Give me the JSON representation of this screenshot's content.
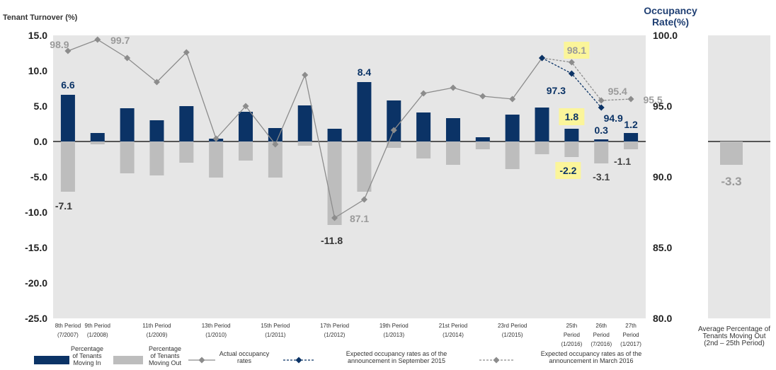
{
  "chart_data": {
    "type": "bar",
    "left_axis_title": "Tenant Turnover (%)",
    "right_axis_title_lines": [
      "Occupancy",
      "Rate(%)"
    ],
    "y_left": {
      "min": -25.0,
      "max": 15.0,
      "ticks": [
        "15.0",
        "10.0",
        "5.0",
        "0.0",
        "-5.0",
        "-10.0",
        "-15.0",
        "-20.0",
        "-25.0"
      ]
    },
    "y_right": {
      "min": 80.0,
      "max": 100.0,
      "ticks": [
        "100.0",
        "95.0",
        "90.0",
        "85.0",
        "80.0"
      ]
    },
    "categories": [
      "8",
      "9",
      "10",
      "11",
      "12",
      "13",
      "14",
      "15",
      "16",
      "17",
      "18",
      "19",
      "20",
      "21",
      "22",
      "23",
      "24",
      "25",
      "26",
      "27"
    ],
    "x_labels": [
      {
        "i": 0,
        "lines": [
          "8th Period",
          "(7/2007)"
        ]
      },
      {
        "i": 1,
        "lines": [
          "9th Period",
          "(1/2008)"
        ]
      },
      {
        "i": 3,
        "lines": [
          "11th Period",
          "(1/2009)"
        ]
      },
      {
        "i": 5,
        "lines": [
          "13th Period",
          "(1/2010)"
        ]
      },
      {
        "i": 7,
        "lines": [
          "15th Period",
          "(1/2011)"
        ]
      },
      {
        "i": 9,
        "lines": [
          "17th Period",
          "(1/2012)"
        ]
      },
      {
        "i": 11,
        "lines": [
          "19th Period",
          "(1/2013)"
        ]
      },
      {
        "i": 13,
        "lines": [
          "21st Period",
          "(1/2014)"
        ]
      },
      {
        "i": 15,
        "lines": [
          "23rd  Period",
          "(1/2015)"
        ]
      },
      {
        "i": 17,
        "lines": [
          "25th",
          "Period",
          "(1/2016)"
        ]
      },
      {
        "i": 18,
        "lines": [
          "26th",
          "Period",
          "(7/2016)"
        ]
      },
      {
        "i": 19,
        "lines": [
          "27th",
          "Period",
          "(1/2017)"
        ]
      }
    ],
    "series": [
      {
        "name": "Percentage of Tenants Moving In",
        "color": "#0b3366",
        "values": [
          6.6,
          1.2,
          4.7,
          3.0,
          5.0,
          0.4,
          4.2,
          1.9,
          5.1,
          1.8,
          8.4,
          5.8,
          4.1,
          3.3,
          0.6,
          3.8,
          4.8,
          1.8,
          0.3,
          1.2
        ]
      },
      {
        "name": "Percentage of Tenants Moving Out",
        "color": "#bdbdbd",
        "values": [
          -7.1,
          -0.4,
          -4.5,
          -4.8,
          -3.0,
          -5.1,
          -2.7,
          -5.1,
          -0.6,
          -11.8,
          -7.1,
          -0.9,
          -2.4,
          -3.3,
          -1.1,
          -3.9,
          -1.8,
          -2.2,
          -3.1,
          -1.1
        ]
      },
      {
        "name": "Actual occupancy rates",
        "color": "#8c8c8c",
        "values": [
          98.9,
          99.7,
          98.4,
          96.7,
          98.8,
          92.7,
          95.0,
          92.3,
          97.2,
          87.1,
          88.4,
          93.3,
          95.9,
          96.3,
          95.7,
          95.5,
          98.4,
          null,
          null,
          null
        ]
      },
      {
        "name": "Expected occupancy rates as of the announcement in September 2015",
        "color": "#0b3366",
        "points": [
          [
            16,
            98.4
          ],
          [
            17,
            97.3
          ],
          [
            18,
            94.9
          ]
        ]
      },
      {
        "name": "Expected occupancy rates as of the announcement in March 2016",
        "color": "#8c8c8c",
        "points": [
          [
            16,
            98.4
          ],
          [
            17,
            98.1
          ],
          [
            18,
            95.4
          ],
          [
            19,
            95.5
          ]
        ]
      }
    ],
    "data_labels": [
      {
        "text": "6.6",
        "i": 0,
        "v": 6.6,
        "axis": "left",
        "color": "#0b3366",
        "dx": 0,
        "dy": -14,
        "highlight": false
      },
      {
        "text": "8.4",
        "i": 10,
        "v": 8.4,
        "axis": "left",
        "color": "#0b3366",
        "dx": 0,
        "dy": -14,
        "highlight": false
      },
      {
        "text": "1.8",
        "i": 17,
        "v": 1.8,
        "axis": "left",
        "color": "#0b3366",
        "dx": 0,
        "dy": -17,
        "highlight": true
      },
      {
        "text": "0.3",
        "i": 18,
        "v": 0.3,
        "axis": "left",
        "color": "#0b3366",
        "dx": 0,
        "dy": -13,
        "highlight": false
      },
      {
        "text": "1.2",
        "i": 19,
        "v": 1.2,
        "axis": "left",
        "color": "#0b3366",
        "dx": 0,
        "dy": -12,
        "highlight": false
      },
      {
        "text": "-7.1",
        "i": 0,
        "v": -7.1,
        "axis": "left",
        "color": "#333333",
        "dx": -6,
        "dy": 20,
        "highlight": false
      },
      {
        "text": "-11.8",
        "i": 9,
        "v": -11.8,
        "axis": "left",
        "color": "#333333",
        "dx": -4,
        "dy": 22,
        "highlight": false
      },
      {
        "text": "-2.2",
        "i": 17,
        "v": -2.2,
        "axis": "left",
        "color": "#0b3366",
        "dx": -5,
        "dy": 19,
        "highlight": true
      },
      {
        "text": "-3.1",
        "i": 18,
        "v": -3.1,
        "axis": "left",
        "color": "#444444",
        "dx": 0,
        "dy": 19,
        "highlight": false
      },
      {
        "text": "-1.1",
        "i": 19,
        "v": -1.1,
        "axis": "left",
        "color": "#444444",
        "dx": -12,
        "dy": 17,
        "highlight": false
      },
      {
        "text": "98.9",
        "i": 0,
        "v": 98.9,
        "axis": "right",
        "color": "#9a9a9a",
        "dx": -12,
        "dy": -9,
        "highlight": false
      },
      {
        "text": "99.7",
        "i": 1,
        "v": 99.7,
        "axis": "right",
        "color": "#9a9a9a",
        "dx": 32,
        "dy": 1,
        "highlight": false
      },
      {
        "text": "87.1",
        "i": 9,
        "v": 87.1,
        "axis": "right",
        "color": "#9a9a9a",
        "dx": 35,
        "dy": 1,
        "highlight": false
      },
      {
        "text": "98.1",
        "i": 17,
        "v": 98.1,
        "axis": "right",
        "color": "#9a9a9a",
        "dx": 7,
        "dy": -17,
        "highlight": true
      },
      {
        "text": "97.3",
        "i": 17,
        "v": 97.3,
        "axis": "right",
        "color": "#0b3366",
        "dx": -22,
        "dy": 24,
        "highlight": false
      },
      {
        "text": "94.9",
        "i": 18,
        "v": 94.9,
        "axis": "right",
        "color": "#0b3366",
        "dx": 17,
        "dy": 15,
        "highlight": false
      },
      {
        "text": "95.4",
        "i": 18,
        "v": 95.4,
        "axis": "right",
        "color": "#9a9a9a",
        "dx": 23,
        "dy": -13,
        "highlight": false
      },
      {
        "text": "95.5",
        "i": 19,
        "v": 95.5,
        "axis": "right",
        "color": "#9a9a9a",
        "dx": 31,
        "dy": 1,
        "highlight": false
      }
    ],
    "side_panel": {
      "value": -3.3,
      "label": "-3.3",
      "caption_lines": [
        "Average Percentage of",
        "Tenants Moving Out",
        "(2nd – 25th Period)"
      ]
    },
    "legend": [
      {
        "kind": "bar-dark",
        "label_lines": [
          "Percentage",
          "of Tenants",
          "Moving In"
        ]
      },
      {
        "kind": "bar-light",
        "label_lines": [
          "Percentage",
          "of Tenants",
          "Moving Out"
        ]
      },
      {
        "kind": "line-actual",
        "label_lines": [
          "Actual occupancy",
          "rates"
        ]
      },
      {
        "kind": "line-sep",
        "label_lines": [
          "Expected occupancy rates as of the",
          "announcement in September 2015"
        ]
      },
      {
        "kind": "line-mar",
        "label_lines": [
          "Expected occupancy rates as of the",
          "announcement in March 2016"
        ]
      }
    ],
    "colors": {
      "plot_bg": "#e6e6e6",
      "axis_title": "#1f3f73"
    }
  }
}
